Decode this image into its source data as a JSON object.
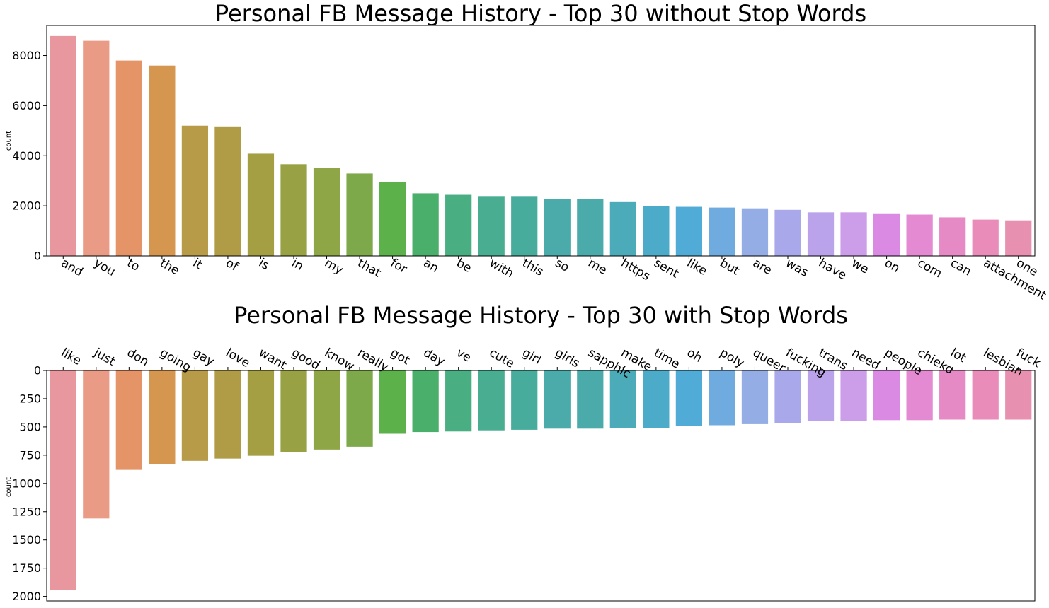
{
  "chart_data": [
    {
      "type": "bar",
      "title": "Personal FB Message History - Top 30 without Stop Words",
      "xlabel": "",
      "ylabel": "count",
      "ylim": [
        0,
        9200
      ],
      "yticks": [
        0,
        2000,
        4000,
        6000,
        8000
      ],
      "categories": [
        "and",
        "you",
        "to",
        "the",
        "it",
        "of",
        "is",
        "in",
        "my",
        "that",
        "for",
        "an",
        "be",
        "with",
        "this",
        "so",
        "me",
        "https",
        "sent",
        "like",
        "but",
        "are",
        "was",
        "have",
        "we",
        "on",
        "com",
        "can",
        "attachment",
        "one"
      ],
      "values": [
        8780,
        8590,
        7800,
        7600,
        5200,
        5170,
        4080,
        3660,
        3520,
        3290,
        2950,
        2500,
        2440,
        2390,
        2390,
        2270,
        2270,
        2150,
        1990,
        1960,
        1930,
        1900,
        1840,
        1740,
        1740,
        1700,
        1650,
        1540,
        1450,
        1420
      ],
      "x_tick_position": "bottom",
      "y_inverted": false,
      "grid": false
    },
    {
      "type": "bar",
      "title": "Personal FB Message History - Top 30 with Stop Words",
      "xlabel": "",
      "ylabel": "count",
      "ylim": [
        0,
        2040
      ],
      "yticks": [
        0,
        250,
        500,
        750,
        1000,
        1250,
        1500,
        1750,
        2000
      ],
      "categories": [
        "like",
        "just",
        "don",
        "going",
        "gay",
        "love",
        "want",
        "good",
        "know",
        "really",
        "got",
        "day",
        "ve",
        "cute",
        "girl",
        "girls",
        "sapphic",
        "make",
        "time",
        "oh",
        "poly",
        "queer",
        "fucking",
        "trans",
        "need",
        "people",
        "chieko",
        "lot",
        "lesbian",
        "fuck"
      ],
      "values": [
        1940,
        1310,
        880,
        830,
        800,
        780,
        755,
        725,
        700,
        675,
        560,
        545,
        540,
        530,
        525,
        515,
        515,
        510,
        510,
        490,
        485,
        475,
        465,
        450,
        450,
        440,
        440,
        435,
        435,
        435
      ],
      "x_tick_position": "top",
      "y_inverted": true,
      "grid": false
    }
  ],
  "palette": [
    "#e8979f",
    "#e99b85",
    "#e49467",
    "#d5974f",
    "#b89b48",
    "#b09b47",
    "#a59f44",
    "#98a244",
    "#8ea646",
    "#7ea94a",
    "#5db14b",
    "#4aaf6a",
    "#49af82",
    "#48ad91",
    "#48ac9d",
    "#4aabaa",
    "#4aabaa",
    "#4babb8",
    "#4cabc9",
    "#50abd6",
    "#6fabdf",
    "#94ade4",
    "#a9a8ea",
    "#baa3ea",
    "#cc9de8",
    "#da8ae3",
    "#e48ad2",
    "#e68ac6",
    "#e98cba",
    "#e890b0"
  ]
}
